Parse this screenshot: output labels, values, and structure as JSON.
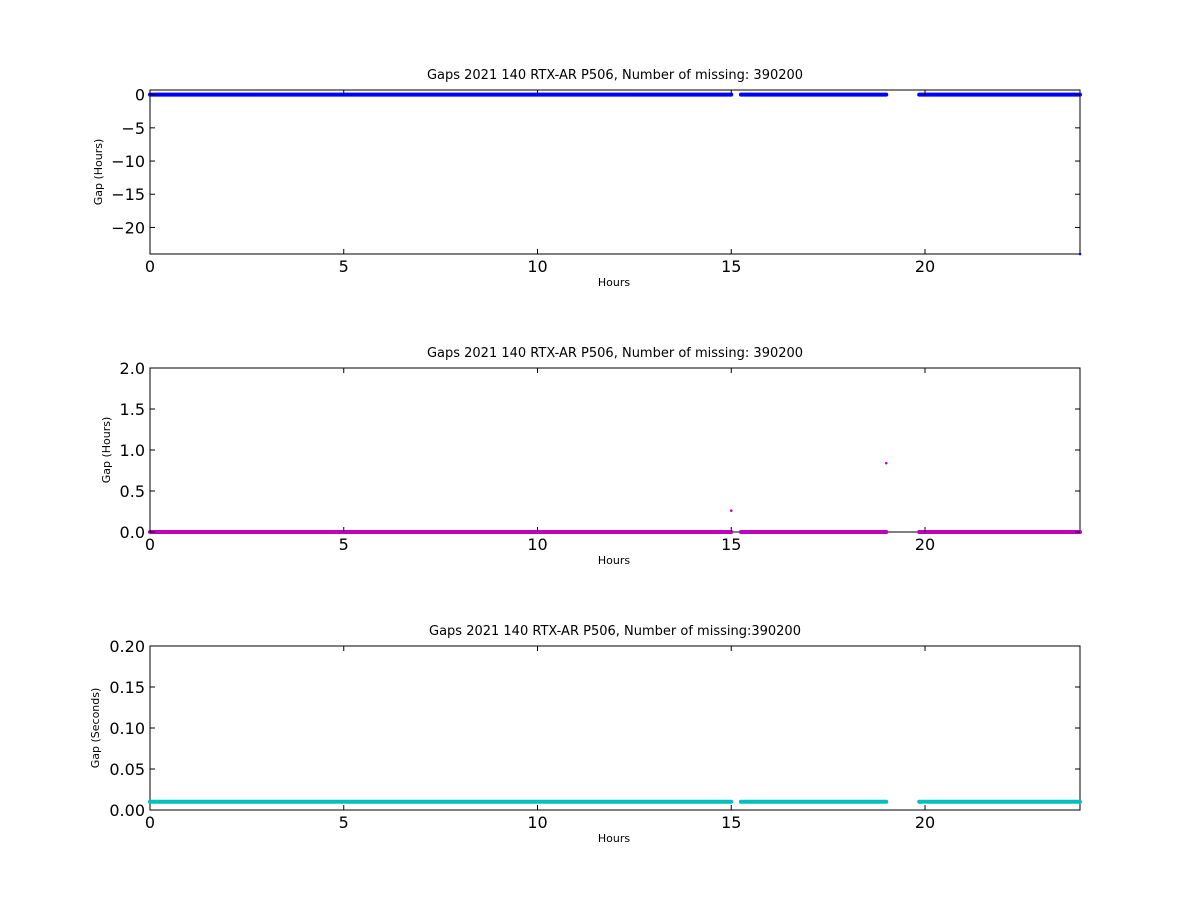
{
  "chart_data": [
    {
      "type": "scatter",
      "title": "Gaps 2021 140 RTX-AR  P506, Number of missing: 390200",
      "xlabel": "Hours",
      "ylabel": "Gap (Hours)",
      "xlim": [
        0,
        24
      ],
      "ylim": [
        -24,
        0.7
      ],
      "xticks": [
        0,
        5,
        10,
        15,
        20
      ],
      "yticks": [
        0,
        -5,
        -10,
        -15,
        -20
      ],
      "grid": false,
      "color": "#0000ff",
      "series": [
        {
          "segments": [
            [
              0,
              15.0
            ],
            [
              15.25,
              19.0
            ],
            [
              19.85,
              24.0
            ]
          ],
          "value": 0
        },
        {
          "points": [
            [
              24.0,
              -24.0
            ]
          ]
        }
      ]
    },
    {
      "type": "scatter",
      "title": "Gaps 2021 140 RTX-AR  P506, Number of missing: 390200",
      "xlabel": "Hours",
      "ylabel": "Gap (Hours)",
      "xlim": [
        0,
        24
      ],
      "ylim": [
        0,
        2.0
      ],
      "xticks": [
        0,
        5,
        10,
        15,
        20
      ],
      "yticks": [
        0.0,
        0.5,
        1.0,
        1.5,
        2.0
      ],
      "grid": false,
      "color": "#bf00bf",
      "series": [
        {
          "segments": [
            [
              0,
              15.0
            ],
            [
              15.25,
              19.0
            ],
            [
              19.85,
              24.0
            ]
          ],
          "value": 0.0
        },
        {
          "points": [
            [
              15.0,
              0.26
            ],
            [
              19.0,
              0.84
            ]
          ]
        }
      ]
    },
    {
      "type": "scatter",
      "title": "Gaps 2021 140 RTX-AR  P506, Number of missing:390200",
      "xlabel": "Hours",
      "ylabel": "Gap (Seconds)",
      "xlim": [
        0,
        24
      ],
      "ylim": [
        0,
        0.2
      ],
      "xticks": [
        0,
        5,
        10,
        15,
        20
      ],
      "yticks": [
        0.0,
        0.05,
        0.1,
        0.15,
        0.2
      ],
      "grid": false,
      "color": "#00bfbf",
      "series": [
        {
          "segments": [
            [
              0,
              15.0
            ],
            [
              15.25,
              19.0
            ],
            [
              19.85,
              24.0
            ]
          ],
          "value": 0.01
        }
      ]
    }
  ]
}
